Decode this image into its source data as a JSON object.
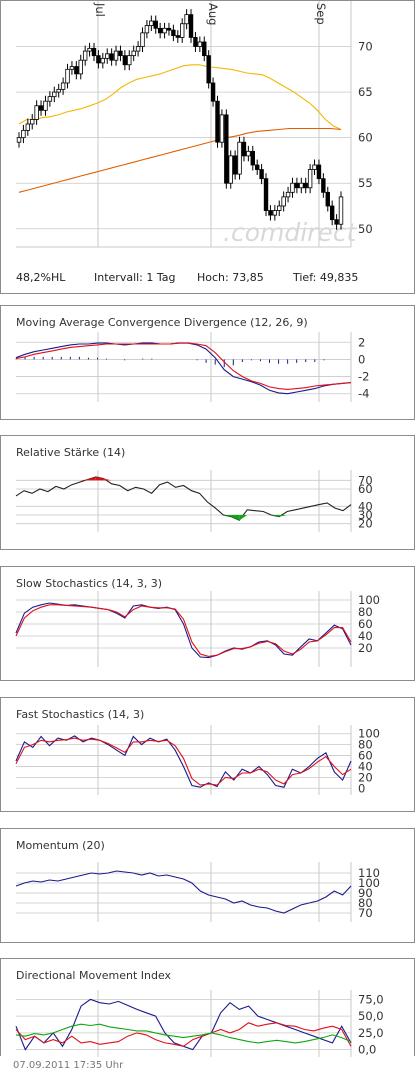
{
  "footer": "07.09.2011 17:35 Uhr",
  "watermark": ".comdirect",
  "months": [
    "Jul",
    "Aug",
    "Sep"
  ],
  "price_stats": {
    "hl": "48,2%HL",
    "interval": "Intervall: 1 Tag",
    "high": "Hoch:  73,85",
    "low": "Tief:  49,835"
  },
  "colors": {
    "candle": "#000000",
    "sma_short": "#f2b705",
    "sma_long": "#e06000",
    "macd": "#1a1a8c",
    "signal": "#e0101a",
    "rsi_high": "#e0101a",
    "rsi_low": "#11a611",
    "adx": "#11a611",
    "grid": "#c8c8c8"
  },
  "chart_data": [
    {
      "type": "candlestick",
      "title": "",
      "y_ticks": [
        "70",
        "65",
        "60",
        "55",
        "50"
      ],
      "ylim": [
        48,
        73.9
      ],
      "x_labels": [
        "Jul",
        "Aug",
        "Sep"
      ],
      "series": [
        {
          "values": [
            60.0,
            60.8,
            61.5,
            62.0,
            63.5,
            63.0,
            64.0,
            64.5,
            65.0,
            65.3,
            66.0,
            67.5,
            67.8,
            67.0,
            68.5,
            69.5,
            69.8,
            69.0,
            68.2,
            68.7,
            69.2,
            68.5,
            69.5,
            69.0,
            68.0,
            69.0,
            69.5,
            70.0,
            71.5,
            72.3,
            72.8,
            72.0,
            71.5,
            72.0,
            71.8,
            71.2,
            71.0,
            72.5,
            73.5,
            71.0,
            70.0,
            70.5,
            69.0,
            66.0,
            64.0,
            59.5,
            62.5,
            55.0,
            58.0,
            56.0,
            59.5,
            58.0,
            58.5,
            57.0,
            56.5,
            55.5,
            52.0,
            51.5,
            52.0,
            52.5,
            53.5,
            54.0,
            55.0,
            54.5,
            55.0,
            54.5,
            56.5,
            57.0,
            55.5,
            54.0,
            52.5,
            51.0,
            50.5,
            53.5
          ]
        },
        {
          "name": "",
          "values": [
            61.5,
            62.0,
            62.0,
            62.2,
            62.3,
            62.5,
            62.8,
            63.0,
            63.2,
            63.5,
            63.8,
            64.2,
            64.8,
            65.5,
            66.0,
            66.4,
            66.6,
            66.8,
            67.0,
            67.3,
            67.6,
            67.9,
            68.0,
            68.0,
            67.8,
            67.7,
            67.6,
            67.5,
            67.3,
            67.1,
            67.0,
            66.9,
            66.5,
            66.0,
            65.5,
            65.0,
            64.4,
            63.8,
            63.0,
            62.0,
            61.3,
            60.9
          ]
        },
        {
          "name": "",
          "values": [
            54.0,
            54.3,
            54.6,
            54.9,
            55.2,
            55.5,
            55.8,
            56.1,
            56.4,
            56.7,
            57.0,
            57.3,
            57.6,
            57.9,
            58.2,
            58.5,
            58.8,
            59.1,
            59.4,
            59.7,
            60.0,
            60.2,
            60.5,
            60.7,
            60.8,
            60.9,
            61.0,
            61.0,
            61.0,
            61.0,
            61.0,
            60.9
          ]
        }
      ]
    },
    {
      "type": "line",
      "title": "Moving Average Convergence Divergence (12, 26, 9)",
      "y_ticks": [
        "2",
        "0",
        "-2",
        "-4"
      ],
      "ylim": [
        -4.5,
        2.5
      ],
      "series": [
        {
          "name": "",
          "values": [
            0.2,
            0.6,
            0.9,
            1.1,
            1.3,
            1.5,
            1.7,
            1.8,
            1.8,
            1.9,
            1.9,
            1.8,
            1.7,
            1.8,
            1.9,
            1.9,
            1.8,
            1.8,
            1.9,
            1.9,
            1.7,
            1.2,
            0.2,
            -1.2,
            -2.0,
            -2.3,
            -2.6,
            -3.0,
            -3.6,
            -3.9,
            -4.0,
            -3.8,
            -3.6,
            -3.4,
            -3.1,
            -2.9,
            -2.8,
            -2.7
          ]
        },
        {
          "name": "",
          "values": [
            0.1,
            0.3,
            0.6,
            0.8,
            1.0,
            1.2,
            1.4,
            1.5,
            1.6,
            1.7,
            1.8,
            1.8,
            1.8,
            1.8,
            1.8,
            1.8,
            1.8,
            1.8,
            1.9,
            1.9,
            1.8,
            1.6,
            0.8,
            -0.3,
            -1.3,
            -2.0,
            -2.5,
            -2.8,
            -3.2,
            -3.4,
            -3.5,
            -3.4,
            -3.3,
            -3.1,
            -3.0,
            -2.9,
            -2.8,
            -2.7
          ]
        },
        {
          "name": "",
          "values": [
            0.1,
            0.3,
            0.3,
            0.3,
            0.3,
            0.3,
            0.3,
            0.3,
            0.2,
            0.2,
            0.1,
            0.0,
            -0.1,
            0.0,
            0.1,
            0.1,
            0.0,
            0.0,
            0.0,
            0.0,
            -0.1,
            -0.4,
            -0.6,
            -0.9,
            -0.7,
            -0.3,
            -0.1,
            -0.2,
            -0.4,
            -0.5,
            -0.5,
            -0.4,
            -0.3,
            -0.3,
            -0.1,
            0.0,
            0.0,
            0.0
          ]
        }
      ]
    },
    {
      "type": "line",
      "title": "Relative Stärke (14)",
      "y_ticks": [
        "70",
        "60",
        "40",
        "30",
        "20"
      ],
      "ylim": [
        15,
        75
      ],
      "series": [
        {
          "name": "",
          "values": [
            52,
            58,
            55,
            60,
            57,
            63,
            60,
            65,
            68,
            71,
            74,
            72,
            66,
            64,
            58,
            62,
            60,
            55,
            65,
            68,
            62,
            64,
            58,
            55,
            45,
            38,
            30,
            28,
            24,
            36,
            35,
            34,
            30,
            28,
            34,
            36,
            38,
            40,
            42,
            44,
            38,
            35,
            42
          ]
        }
      ]
    },
    {
      "type": "line",
      "title": "Slow Stochastics (14, 3, 3)",
      "y_ticks": [
        "100",
        "80",
        "60",
        "40",
        "20"
      ],
      "ylim": [
        -5,
        105
      ],
      "series": [
        {
          "name": "",
          "values": [
            45,
            78,
            88,
            92,
            95,
            93,
            91,
            92,
            90,
            88,
            86,
            84,
            78,
            70,
            90,
            92,
            88,
            86,
            88,
            84,
            60,
            20,
            5,
            4,
            8,
            15,
            20,
            18,
            22,
            30,
            32,
            25,
            10,
            8,
            22,
            35,
            32,
            45,
            58,
            52,
            25
          ]
        },
        {
          "name": "",
          "values": [
            40,
            70,
            82,
            88,
            92,
            92,
            91,
            90,
            89,
            88,
            86,
            84,
            80,
            72,
            84,
            90,
            88,
            87,
            87,
            85,
            68,
            30,
            10,
            6,
            8,
            14,
            19,
            19,
            22,
            28,
            31,
            27,
            15,
            10,
            18,
            30,
            32,
            42,
            54,
            54,
            30
          ]
        }
      ]
    },
    {
      "type": "line",
      "title": "Fast Stochastics (14, 3)",
      "y_ticks": [
        "100",
        "80",
        "60",
        "40",
        "20",
        "0"
      ],
      "ylim": [
        -5,
        105
      ],
      "series": [
        {
          "name": "",
          "values": [
            50,
            85,
            75,
            95,
            78,
            92,
            88,
            96,
            85,
            92,
            88,
            80,
            70,
            60,
            95,
            80,
            92,
            85,
            90,
            70,
            40,
            5,
            2,
            10,
            3,
            30,
            15,
            35,
            28,
            40,
            25,
            5,
            2,
            35,
            28,
            40,
            55,
            65,
            30,
            15,
            50
          ]
        },
        {
          "name": "",
          "values": [
            45,
            75,
            80,
            88,
            85,
            88,
            89,
            92,
            88,
            90,
            88,
            82,
            74,
            66,
            85,
            85,
            88,
            86,
            88,
            78,
            55,
            18,
            6,
            8,
            6,
            20,
            18,
            28,
            28,
            35,
            30,
            15,
            8,
            25,
            28,
            36,
            48,
            58,
            40,
            25,
            35
          ]
        }
      ]
    },
    {
      "type": "line",
      "title": "Momentum (20)",
      "y_ticks": [
        "110",
        "100",
        "90",
        "80",
        "70"
      ],
      "ylim": [
        65,
        115
      ],
      "series": [
        {
          "name": "",
          "values": [
            97,
            100,
            102,
            101,
            103,
            102,
            104,
            106,
            108,
            110,
            109,
            110,
            112,
            111,
            110,
            108,
            110,
            107,
            108,
            106,
            104,
            100,
            92,
            88,
            86,
            84,
            80,
            82,
            78,
            76,
            75,
            72,
            70,
            74,
            78,
            80,
            82,
            86,
            92,
            88,
            97
          ]
        }
      ]
    },
    {
      "type": "line",
      "title": "Directional Movement Index",
      "y_ticks": [
        "75,0",
        "50,0",
        "25,0",
        "0,0"
      ],
      "ylim": [
        -5,
        80
      ],
      "series": [
        {
          "name": "",
          "values": [
            35,
            0,
            20,
            10,
            25,
            5,
            30,
            65,
            75,
            70,
            68,
            72,
            66,
            60,
            55,
            50,
            25,
            10,
            5,
            0,
            20,
            25,
            55,
            70,
            60,
            65,
            50,
            45,
            40,
            35,
            30,
            25,
            20,
            15,
            10,
            35,
            10
          ]
        },
        {
          "name": "",
          "values": [
            30,
            15,
            20,
            10,
            15,
            10,
            20,
            10,
            12,
            8,
            10,
            12,
            20,
            25,
            22,
            15,
            10,
            8,
            5,
            15,
            20,
            25,
            30,
            25,
            30,
            40,
            35,
            38,
            40,
            36,
            35,
            30,
            28,
            32,
            35,
            30,
            5
          ]
        },
        {
          "name": "",
          "values": [
            22,
            20,
            24,
            22,
            25,
            30,
            35,
            38,
            36,
            38,
            34,
            32,
            30,
            28,
            28,
            25,
            22,
            20,
            18,
            20,
            22,
            25,
            22,
            18,
            15,
            12,
            10,
            12,
            14,
            12,
            10,
            12,
            15,
            18,
            22,
            18,
            12
          ]
        }
      ]
    }
  ]
}
